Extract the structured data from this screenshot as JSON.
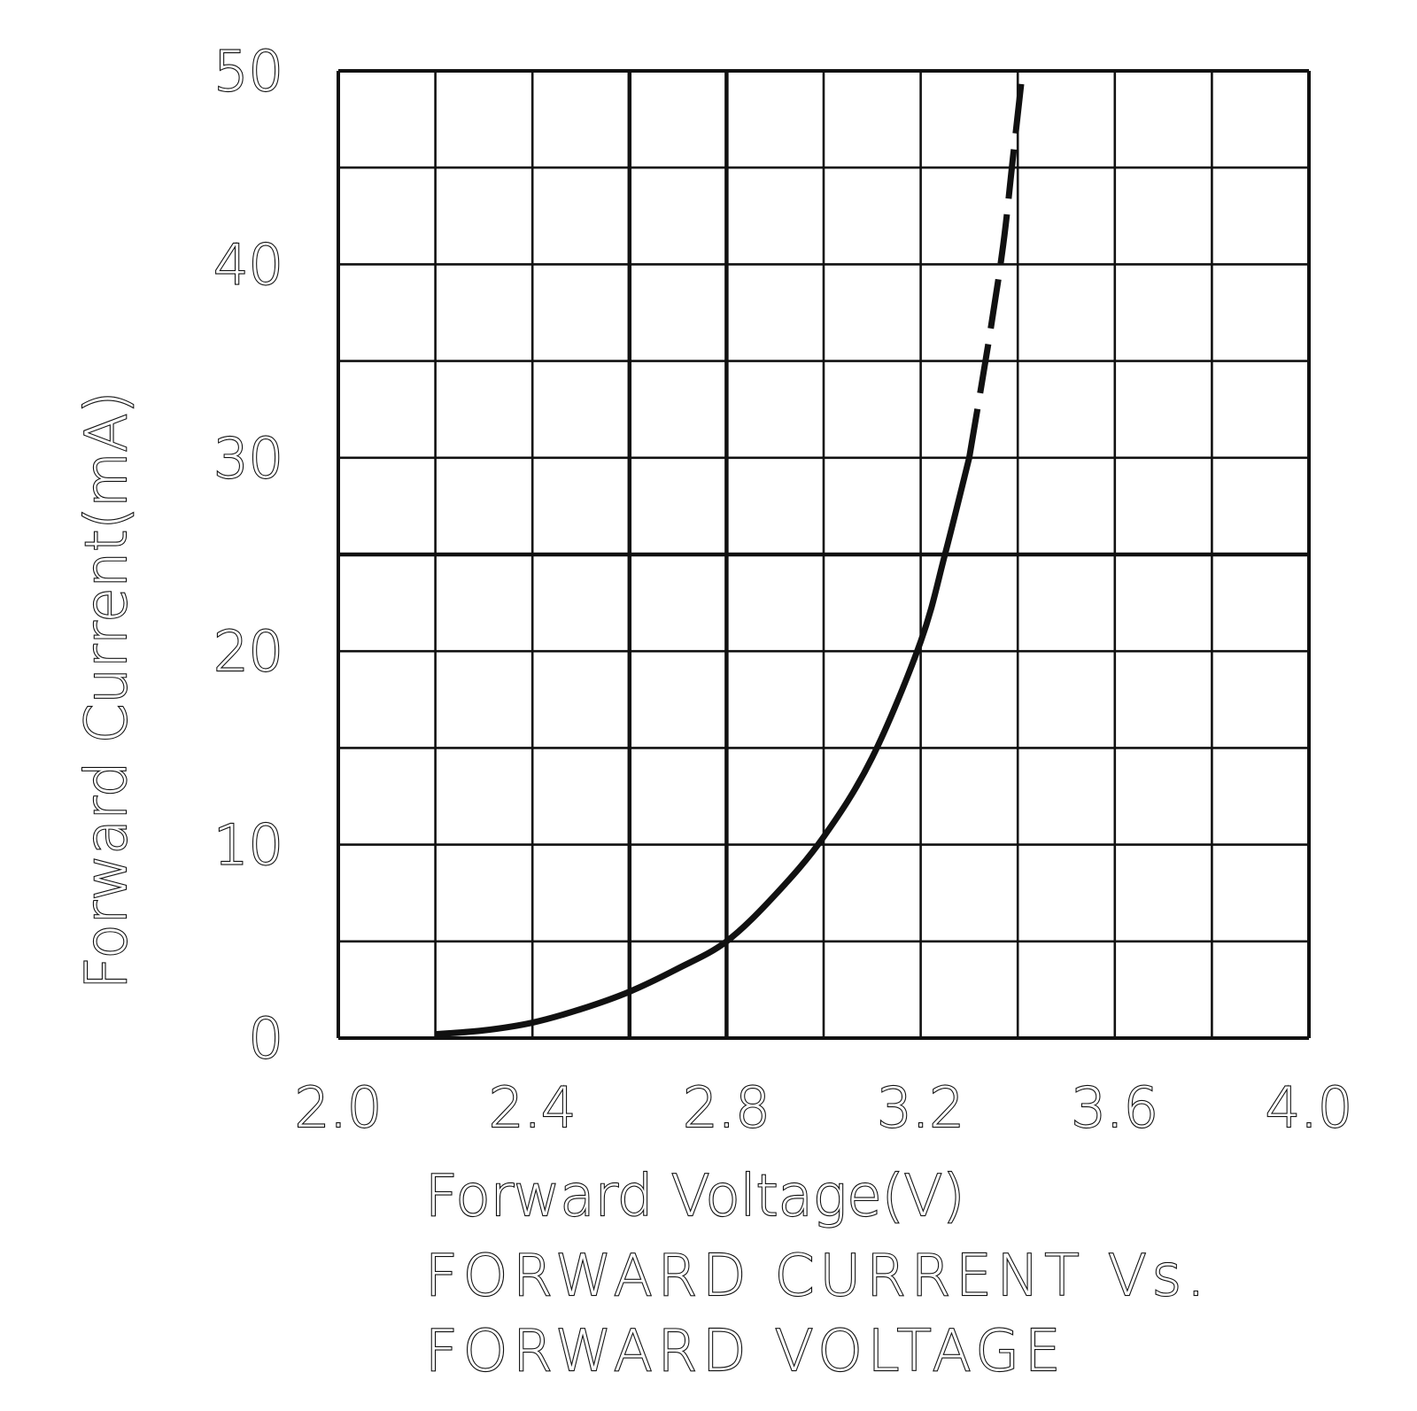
{
  "chart_data": {
    "type": "line",
    "title_lines": [
      "FORWARD CURRENT Vs.",
      "FORWARD VOLTAGE"
    ],
    "xlabel": "Forward Voltage(V)",
    "ylabel": "Forward Current(mA)",
    "xlim": [
      2.0,
      4.0
    ],
    "ylim": [
      0,
      50
    ],
    "x_ticks": [
      "2.0",
      "2.4",
      "2.8",
      "3.2",
      "3.6",
      "4.0"
    ],
    "y_ticks": [
      "0",
      "10",
      "20",
      "30",
      "40",
      "50"
    ],
    "x_grid_step": 0.2,
    "y_grid_step": 5,
    "major_gridlines": {
      "x": [
        2.6,
        2.8
      ],
      "y": [
        25
      ]
    },
    "grid": true,
    "legend": "none",
    "line_color": "#111111",
    "series": [
      {
        "style": "solid",
        "x": [
          2.2,
          2.3,
          2.4,
          2.5,
          2.6,
          2.7,
          2.8,
          2.9,
          3.0,
          3.1,
          3.2,
          3.25,
          3.3
        ],
        "y": [
          0.2,
          0.4,
          0.8,
          1.5,
          2.4,
          3.6,
          5.0,
          7.4,
          10.4,
          14.5,
          20.5,
          25.0,
          30.0
        ]
      },
      {
        "style": "dashed",
        "x": [
          3.3,
          3.34,
          3.37,
          3.39,
          3.41
        ],
        "y": [
          30.0,
          36.0,
          41.0,
          45.5,
          50.0
        ]
      }
    ]
  }
}
